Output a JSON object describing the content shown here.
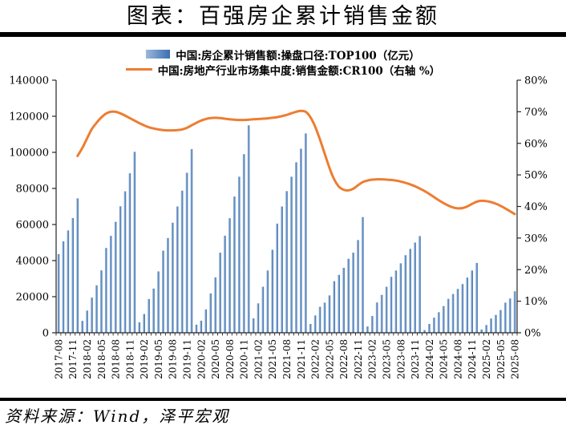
{
  "page": {
    "title": "图表：百强房企累计销售金额",
    "source_note": "资料来源：Wind，泽平宏观"
  },
  "legend": {
    "bar_label": "中国:房企累计销售额:操盘口径:TOP100（亿元）",
    "line_label": "中国:房地产行业市场集中度:销售金额:CR100（右轴 %）"
  },
  "colors": {
    "bar_gradient_light": "#9BB8DA",
    "bar_gradient_mid": "#6C95C5",
    "bar_gradient_dark": "#3B6FB0",
    "line": "#ED7D31",
    "axis": "#262626",
    "rule": "#000000"
  },
  "chart_data": {
    "type": "bar",
    "subtype": "bar+line dual axis",
    "title": "图表：百强房企累计销售金额",
    "xlabel": "",
    "ylabel_left": "亿元",
    "ylabel_right": "%",
    "grid": false,
    "legend_position": "top-center",
    "x_label_every": 3,
    "months": [
      "2017-08",
      "2017-09",
      "2017-10",
      "2017-11",
      "2017-12",
      "2018-01",
      "2018-02",
      "2018-03",
      "2018-04",
      "2018-05",
      "2018-06",
      "2018-07",
      "2018-08",
      "2018-09",
      "2018-10",
      "2018-11",
      "2018-12",
      "2019-01",
      "2019-02",
      "2019-03",
      "2019-04",
      "2019-05",
      "2019-06",
      "2019-07",
      "2019-08",
      "2019-09",
      "2019-10",
      "2019-11",
      "2019-12",
      "2020-01",
      "2020-02",
      "2020-03",
      "2020-04",
      "2020-05",
      "2020-06",
      "2020-07",
      "2020-08",
      "2020-09",
      "2020-10",
      "2020-11",
      "2020-12",
      "2021-01",
      "2021-02",
      "2021-03",
      "2021-04",
      "2021-05",
      "2021-06",
      "2021-07",
      "2021-08",
      "2021-09",
      "2021-10",
      "2021-11",
      "2021-12",
      "2022-01",
      "2022-02",
      "2022-03",
      "2022-04",
      "2022-05",
      "2022-06",
      "2022-07",
      "2022-08",
      "2022-09",
      "2022-10",
      "2022-11",
      "2022-12",
      "2023-01",
      "2023-02",
      "2023-03",
      "2023-04",
      "2023-05",
      "2023-06",
      "2023-07",
      "2023-08",
      "2023-09",
      "2023-10",
      "2023-11",
      "2023-12",
      "2024-01",
      "2024-02",
      "2024-03",
      "2024-04",
      "2024-05",
      "2024-06",
      "2024-07",
      "2024-08",
      "2024-09",
      "2024-10",
      "2024-11",
      "2024-12",
      "2025-01",
      "2025-02",
      "2025-03",
      "2025-04",
      "2025-05",
      "2025-06",
      "2025-07",
      "2025-08"
    ],
    "bar_series": {
      "name": "中国:房企累计销售额:操盘口径:TOP100（亿元）",
      "axis": "left",
      "values": [
        43600,
        50700,
        56700,
        63600,
        74500,
        6600,
        12300,
        19500,
        26300,
        34600,
        47000,
        53700,
        61500,
        70100,
        78400,
        88400,
        100300,
        5800,
        10400,
        18700,
        24500,
        34000,
        45500,
        52500,
        61000,
        70000,
        78800,
        88700,
        101800,
        4500,
        6700,
        12900,
        21800,
        30700,
        44400,
        53800,
        63500,
        75500,
        86500,
        99000,
        115000,
        8000,
        16300,
        25500,
        34500,
        46000,
        60500,
        70000,
        78500,
        86500,
        94500,
        102000,
        110500,
        4900,
        9600,
        14400,
        16700,
        20700,
        28600,
        32100,
        36000,
        41000,
        44400,
        51400,
        64100,
        3500,
        9300,
        16800,
        21000,
        25500,
        31000,
        34500,
        38500,
        43000,
        46500,
        50000,
        53600,
        1500,
        4900,
        8400,
        11400,
        14800,
        18800,
        21500,
        24300,
        27000,
        30600,
        34500,
        38700,
        1800,
        4300,
        7900,
        9900,
        12600,
        16700,
        19000,
        23000
      ]
    },
    "line_series": {
      "name": "中国:房地产行业市场集中度:销售金额:CR100（右轴 %）",
      "axis": "right",
      "values": [
        null,
        null,
        null,
        null,
        56.0,
        58.5,
        61.5,
        64.5,
        66.5,
        68.2,
        69.4,
        70.0,
        70.0,
        69.5,
        68.8,
        68.0,
        67.2,
        66.4,
        65.7,
        65.1,
        64.7,
        64.4,
        64.2,
        64.1,
        64.1,
        64.2,
        64.4,
        64.9,
        65.7,
        66.5,
        67.2,
        67.7,
        68.0,
        68.1,
        68.0,
        67.8,
        67.6,
        67.5,
        67.4,
        67.4,
        67.5,
        67.6,
        67.7,
        67.8,
        67.9,
        68.1,
        68.3,
        68.6,
        69.0,
        69.5,
        70.0,
        70.3,
        70.0,
        68.3,
        65.3,
        61.3,
        56.8,
        52.3,
        48.6,
        46.3,
        45.3,
        45.1,
        45.6,
        46.7,
        47.7,
        48.2,
        48.5,
        48.6,
        48.6,
        48.5,
        48.4,
        48.2,
        47.9,
        47.5,
        47.0,
        46.4,
        45.7,
        44.9,
        44.0,
        43.0,
        42.0,
        41.1,
        40.3,
        39.7,
        39.4,
        39.5,
        40.0,
        40.8,
        41.5,
        41.8,
        41.7,
        41.4,
        40.9,
        40.2,
        39.4,
        38.5,
        37.6
      ]
    },
    "left_axis": {
      "min": 0,
      "max": 140000,
      "step": 20000,
      "tick_labels": [
        "0",
        "20000",
        "40000",
        "60000",
        "80000",
        "100000",
        "120000",
        "140000"
      ]
    },
    "right_axis": {
      "min": 0,
      "max": 80,
      "step": 10,
      "tick_labels": [
        "0%",
        "10%",
        "20%",
        "30%",
        "40%",
        "50%",
        "60%",
        "70%",
        "80%"
      ]
    }
  }
}
